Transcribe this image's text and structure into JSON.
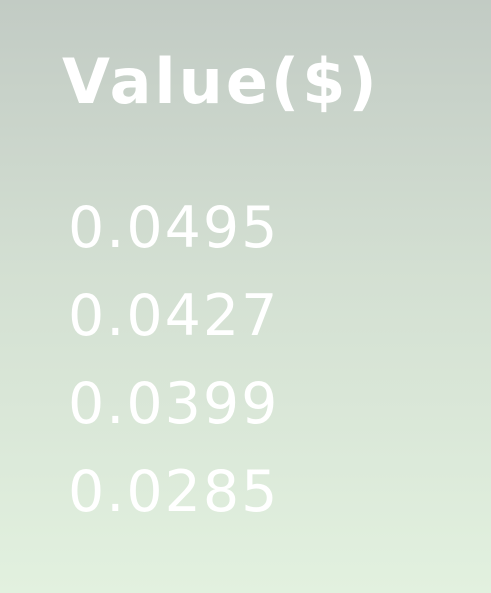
{
  "header": {
    "title": "Value($)"
  },
  "values": [
    "0.0495",
    "0.0427",
    "0.0399",
    "0.0285"
  ],
  "colors": {
    "text": "#ffffff",
    "background_top": "#c2cbc4",
    "background_bottom": "#e2f1df"
  }
}
